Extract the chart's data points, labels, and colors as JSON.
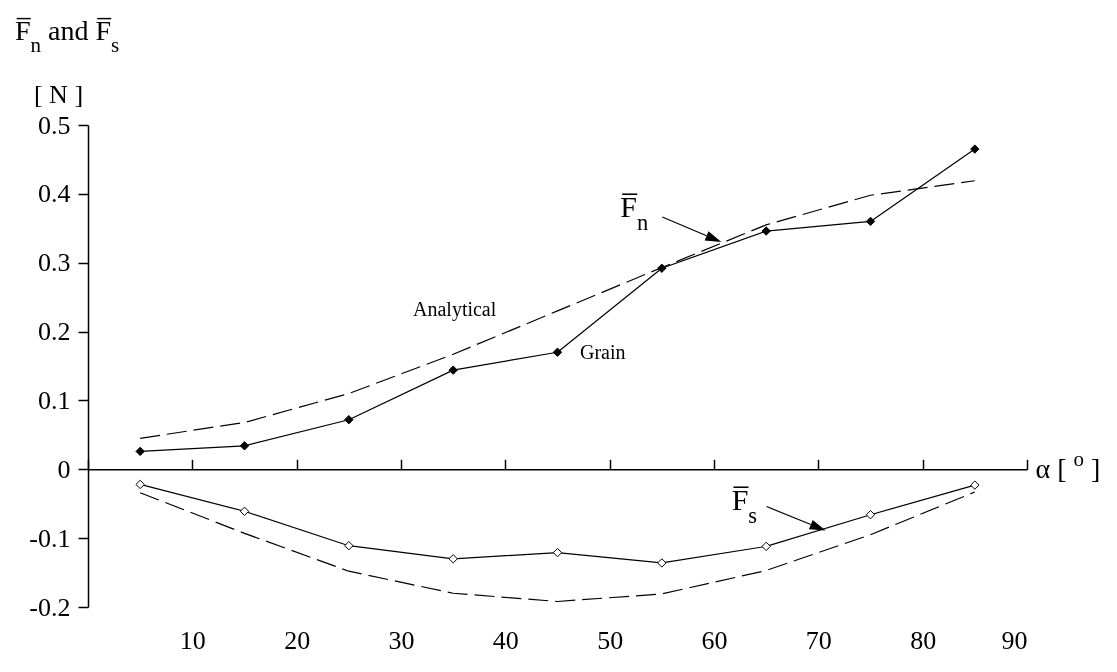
{
  "chart_data": {
    "type": "line",
    "title": "F̅$_{n}$ and F̅$_{s}$",
    "ylabel": "[ N ]",
    "xlabel": "α [ $^{o}$ ]",
    "x": [
      5,
      15,
      25,
      35,
      45,
      55,
      65,
      75,
      85
    ],
    "xlim": [
      0,
      90
    ],
    "xticks": [
      {
        "value": 0,
        "label": null
      },
      10,
      20,
      30,
      40,
      50,
      60,
      70,
      80,
      90
    ],
    "ylim": [
      -0.2,
      0.5
    ],
    "yticks": [
      -0.2,
      -0.1,
      0,
      0.1,
      0.2,
      0.3,
      0.4,
      0.5
    ],
    "series": [
      {
        "color": "#000000",
        "line_style": "dashed",
        "marker": "none",
        "values": [
          0.045,
          0.068,
          0.11,
          0.167,
          0.23,
          0.293,
          0.355,
          0.398,
          0.419
        ]
      },
      {
        "color": "#000000",
        "line_style": "solid",
        "marker": "diamond",
        "values": [
          0.026,
          0.034,
          0.072,
          0.144,
          0.17,
          0.292,
          0.346,
          0.36,
          0.465
        ]
      },
      {
        "color": "#000000",
        "line_style": "dashed",
        "marker": "none",
        "values": [
          -0.034,
          -0.093,
          -0.148,
          -0.18,
          -0.192,
          -0.181,
          -0.147,
          -0.095,
          -0.033
        ]
      },
      {
        "color": "#000000",
        "line_style": "solid",
        "marker": "diamond",
        "colors": [
          "#ffffff",
          "#ffffff",
          "#ffffff",
          "#ffffff",
          "#ffffff",
          "#ffffff",
          "#ffffff",
          "#ffffff",
          "#ffffff"
        ],
        "values": [
          -0.022,
          -0.061,
          -0.111,
          -0.13,
          -0.121,
          -0.136,
          -0.112,
          -0.066,
          -0.023
        ]
      }
    ],
    "annotations": [
      "Analytical",
      "Grain",
      {
        "text": "F̅$_{n}$",
        "x": 60.7,
        "y": 0.33
      },
      {
        "text": "F̅$_{s}$",
        "x": 70.7,
        "y": -0.089
      }
    ]
  }
}
